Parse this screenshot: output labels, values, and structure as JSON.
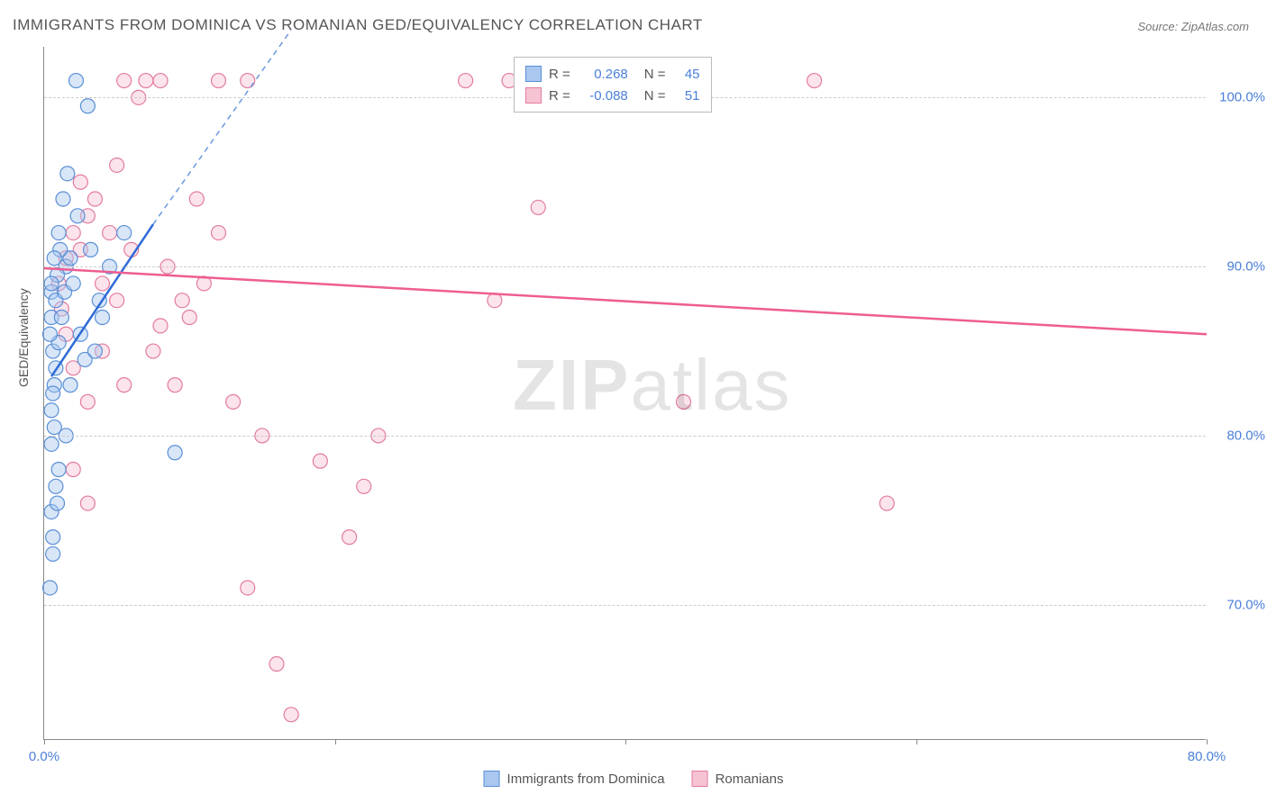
{
  "title": "IMMIGRANTS FROM DOMINICA VS ROMANIAN GED/EQUIVALENCY CORRELATION CHART",
  "source": "Source: ZipAtlas.com",
  "ylabel": "GED/Equivalency",
  "watermark_zip": "ZIP",
  "watermark_atlas": "atlas",
  "colors": {
    "series_a_fill": "#a9c7ef",
    "series_a_stroke": "#5a8fd6",
    "series_b_fill": "#f6c3d2",
    "series_b_stroke": "#e37ba0",
    "axis": "#888888",
    "grid": "#cccccc",
    "tick_text": "#4a7fd8",
    "label_text": "#555555",
    "trend_a": "#2e6bd6",
    "trend_a_dash": "#6a98df",
    "trend_b": "#ee5d92"
  },
  "chart": {
    "type": "scatter",
    "xlim": [
      0,
      80
    ],
    "ylim": [
      62,
      103
    ],
    "y_ticks": [
      70,
      80,
      90,
      100
    ],
    "y_tick_labels": [
      "70.0%",
      "80.0%",
      "90.0%",
      "100.0%"
    ],
    "x_ticks": [
      0,
      20,
      40,
      60,
      80
    ],
    "x_tick_labels": [
      "0.0%",
      "",
      "",
      "",
      "80.0%"
    ],
    "marker_radius": 8,
    "marker_fill_opacity": 0.45,
    "marker_stroke_width": 1.2
  },
  "legend_top": {
    "rows": [
      {
        "swatch": "a",
        "r_label": "R =",
        "r_val": "0.268",
        "n_label": "N =",
        "n_val": "45"
      },
      {
        "swatch": "b",
        "r_label": "R =",
        "r_val": "-0.088",
        "n_label": "N =",
        "n_val": "51"
      }
    ]
  },
  "legend_bottom": {
    "items": [
      {
        "swatch": "a",
        "label": "Immigrants from Dominica"
      },
      {
        "swatch": "b",
        "label": "Romanians"
      }
    ]
  },
  "series_a": {
    "name": "Immigrants from Dominica",
    "trend": {
      "x1": 0.5,
      "y1": 83.5,
      "x2": 7.5,
      "y2": 92.5,
      "dash_x2": 17,
      "dash_y2": 104
    },
    "points": [
      [
        0.5,
        88.5
      ],
      [
        0.5,
        87
      ],
      [
        0.8,
        88
      ],
      [
        0.6,
        85
      ],
      [
        0.7,
        83
      ],
      [
        0.5,
        81.5
      ],
      [
        0.7,
        80.5
      ],
      [
        0.5,
        79.5
      ],
      [
        0.6,
        82.5
      ],
      [
        0.8,
        84
      ],
      [
        1.0,
        85.5
      ],
      [
        1.2,
        87
      ],
      [
        1.4,
        88.5
      ],
      [
        1.5,
        90
      ],
      [
        1.8,
        90.5
      ],
      [
        0.9,
        89.5
      ],
      [
        1.1,
        91
      ],
      [
        0.7,
        90.5
      ],
      [
        1.0,
        92
      ],
      [
        1.3,
        94
      ],
      [
        1.6,
        95.5
      ],
      [
        2.2,
        101
      ],
      [
        3.0,
        99.5
      ],
      [
        3.2,
        91
      ],
      [
        3.8,
        88
      ],
      [
        4.0,
        87
      ],
      [
        4.5,
        90
      ],
      [
        5.5,
        92
      ],
      [
        0.5,
        75.5
      ],
      [
        0.6,
        74
      ],
      [
        0.6,
        73
      ],
      [
        0.4,
        71
      ],
      [
        2.5,
        86
      ],
      [
        2.8,
        84.5
      ],
      [
        3.5,
        85
      ],
      [
        1.0,
        78
      ],
      [
        9.0,
        79
      ],
      [
        0.4,
        86
      ],
      [
        0.5,
        89
      ],
      [
        2.0,
        89
      ],
      [
        2.3,
        93
      ],
      [
        1.8,
        83
      ],
      [
        1.5,
        80
      ],
      [
        0.8,
        77
      ],
      [
        0.9,
        76
      ]
    ]
  },
  "series_b": {
    "name": "Romanians",
    "trend": {
      "x1": 0,
      "y1": 89.9,
      "x2": 80,
      "y2": 86.0
    },
    "points": [
      [
        1.5,
        90.5
      ],
      [
        2.0,
        92
      ],
      [
        2.5,
        91
      ],
      [
        3.0,
        93
      ],
      [
        4.0,
        89
      ],
      [
        5.0,
        96
      ],
      [
        5.5,
        101
      ],
      [
        7.0,
        101
      ],
      [
        8.0,
        101
      ],
      [
        8.0,
        86.5
      ],
      [
        9.0,
        83
      ],
      [
        10.0,
        87
      ],
      [
        11.0,
        89
      ],
      [
        12.0,
        101
      ],
      [
        13.0,
        82
      ],
      [
        14.0,
        101
      ],
      [
        15.0,
        80
      ],
      [
        16.0,
        66.5
      ],
      [
        14.0,
        71
      ],
      [
        19.0,
        78.5
      ],
      [
        21.0,
        74
      ],
      [
        22.0,
        77
      ],
      [
        23.0,
        80
      ],
      [
        29.0,
        101
      ],
      [
        31.0,
        88
      ],
      [
        32.0,
        101
      ],
      [
        34.0,
        93.5
      ],
      [
        53.0,
        101
      ],
      [
        44.0,
        82
      ],
      [
        58.0,
        76
      ],
      [
        1.0,
        89
      ],
      [
        1.2,
        87.5
      ],
      [
        1.5,
        86
      ],
      [
        2.0,
        84
      ],
      [
        3.0,
        82
      ],
      [
        4.0,
        85
      ],
      [
        5.0,
        88
      ],
      [
        6.0,
        91
      ],
      [
        6.5,
        100
      ],
      [
        2.5,
        95
      ],
      [
        3.5,
        94
      ],
      [
        4.5,
        92
      ],
      [
        5.5,
        83
      ],
      [
        7.5,
        85
      ],
      [
        8.5,
        90
      ],
      [
        9.5,
        88
      ],
      [
        2.0,
        78
      ],
      [
        3.0,
        76
      ],
      [
        17.0,
        63.5
      ],
      [
        12.0,
        92
      ],
      [
        10.5,
        94
      ]
    ]
  }
}
